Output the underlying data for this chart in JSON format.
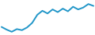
{
  "x": [
    0,
    1,
    2,
    3,
    4,
    5,
    6,
    7,
    8,
    9,
    10,
    11,
    12,
    13,
    14,
    15,
    16,
    17,
    18
  ],
  "y": [
    6.0,
    5.0,
    4.2,
    5.2,
    4.8,
    5.8,
    7.5,
    10.5,
    12.0,
    11.0,
    12.5,
    11.5,
    12.8,
    11.8,
    13.5,
    12.5,
    13.2,
    14.5,
    13.8
  ],
  "line_color": "#2196c8",
  "line_width": 1.4,
  "background_color": "#ffffff",
  "ylim": [
    3.0,
    16.0
  ],
  "xlim": [
    -0.3,
    18.3
  ]
}
